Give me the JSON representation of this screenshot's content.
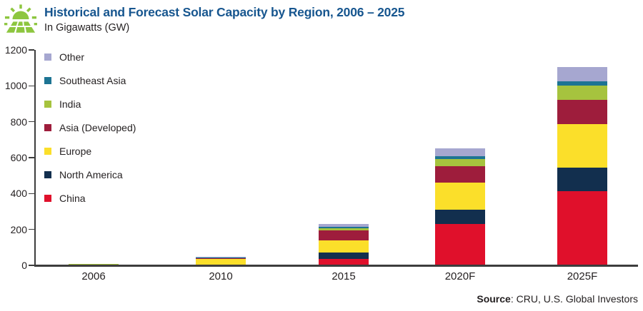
{
  "header": {
    "title": "Historical and Forecast Solar Capacity by Region, 2006 – 2025",
    "subtitle": "In Gigawatts (GW)",
    "icon": "solar-sun-panel-icon"
  },
  "source": {
    "label": "Source",
    "rest": ": CRU, U.S. Global Investors"
  },
  "colors": {
    "title_blue": "#17568f",
    "text_dark": "#231f20",
    "axis_gray": "#3d3d3d",
    "icon_green": "#8dc63f"
  },
  "chart_data": {
    "type": "bar",
    "stacked": true,
    "title": "Historical and Forecast Solar Capacity by Region, 2006 – 2025",
    "units_label": "In Gigawatts (GW)",
    "xlabel": "",
    "ylabel": "Gigawatts (GW)",
    "categories": [
      "2006",
      "2010",
      "2015",
      "2020F",
      "2025F"
    ],
    "ylim": [
      0,
      1200
    ],
    "yticks": [
      "0",
      "200",
      "400",
      "600",
      "800",
      "1000",
      "1200"
    ],
    "grid": false,
    "legend_position": "top-left-inside",
    "legend_order_top_to_bottom": [
      "Other",
      "Southeast Asia",
      "India",
      "Asia (Developed)",
      "Europe",
      "North America",
      "China"
    ],
    "stack_order_bottom_to_top": [
      "China",
      "North America",
      "Europe",
      "Asia (Developed)",
      "India",
      "Southeast Asia",
      "Other"
    ],
    "series": [
      {
        "name": "Other",
        "color": "#a6a7d0",
        "values": [
          1,
          5,
          16,
          46,
          80
        ]
      },
      {
        "name": "Southeast Asia",
        "color": "#1d7493",
        "values": [
          0.2,
          0.5,
          8,
          16,
          23
        ]
      },
      {
        "name": "India",
        "color": "#a6c33e",
        "values": [
          0.2,
          0.5,
          11,
          37,
          80
        ]
      },
      {
        "name": "Asia (Developed)",
        "color": "#9e1d3c",
        "values": [
          2.5,
          5,
          56,
          91,
          137
        ]
      },
      {
        "name": "Europe",
        "color": "#fbdf2a",
        "values": [
          2.5,
          33,
          66,
          153,
          240
        ]
      },
      {
        "name": "North America",
        "color": "#122f4e",
        "values": [
          0.5,
          2,
          39,
          80,
          133
        ]
      },
      {
        "name": "China",
        "color": "#e0102b",
        "values": [
          0.5,
          1,
          34,
          230,
          413
        ]
      }
    ],
    "totals_approx_gw": [
      7,
      47,
      230,
      653,
      1106
    ]
  }
}
